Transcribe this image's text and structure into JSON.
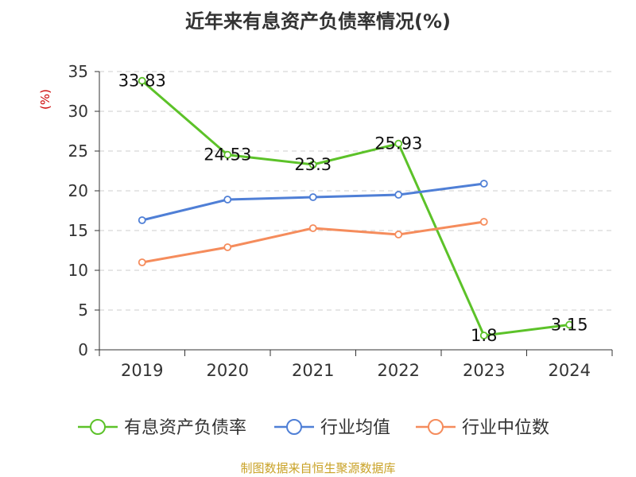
{
  "chart_data": {
    "type": "line",
    "title": "近年来有息资产负债率情况(%)",
    "ylabel": "(%)",
    "xlabel": "",
    "categories": [
      "2019",
      "2020",
      "2021",
      "2022",
      "2023",
      "2024"
    ],
    "ylim": [
      0,
      35
    ],
    "yticks": [
      0,
      5,
      10,
      15,
      20,
      25,
      30,
      35
    ],
    "grid": true,
    "legend_position": "bottom",
    "series": [
      {
        "name": "有息资产负债率",
        "color": "#5cc229",
        "values": [
          33.83,
          24.53,
          23.3,
          25.93,
          1.8,
          3.15
        ],
        "labels": [
          "33.83",
          "24.53",
          "23.3",
          "25.93",
          "1.8",
          "3.15"
        ]
      },
      {
        "name": "行业均值",
        "color": "#4f7fd6",
        "values": [
          16.3,
          18.9,
          19.2,
          19.5,
          20.9,
          null
        ],
        "labels": null
      },
      {
        "name": "行业中位数",
        "color": "#f58c5c",
        "values": [
          11.0,
          12.9,
          15.3,
          14.5,
          16.1,
          null
        ],
        "labels": null
      }
    ]
  },
  "source": "制图数据来自恒生聚源数据库",
  "colors": {
    "axis": "#333333",
    "grid": "#cccccc",
    "ylabel": "#cc0000",
    "source": "#c9a227"
  }
}
